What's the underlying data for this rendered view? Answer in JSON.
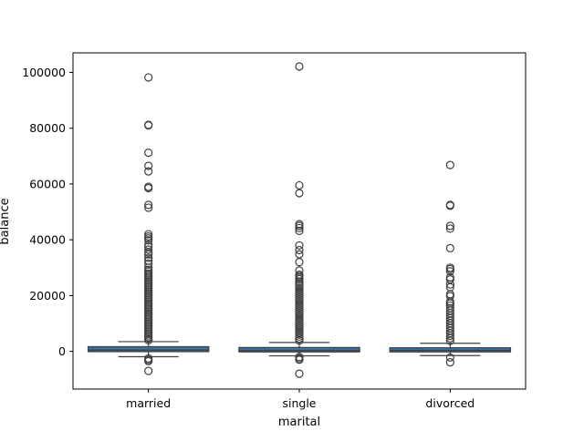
{
  "chart_data": {
    "type": "box",
    "xlabel": "marital",
    "ylabel": "balance",
    "ylim": [
      -13500,
      107000
    ],
    "yticks": [
      0,
      20000,
      40000,
      60000,
      80000,
      100000
    ],
    "ytick_labels": [
      "0",
      "20000",
      "40000",
      "60000",
      "80000",
      "100000"
    ],
    "categories": [
      "married",
      "single",
      "divorced"
    ],
    "box_color": "#3c6e9f",
    "boxes": [
      {
        "category": "married",
        "whisker_low": -1900,
        "q1": -100,
        "median": 450,
        "q3": 1700,
        "whisker_high": 3500,
        "outliers": [
          98200,
          81200,
          81000,
          71200,
          66500,
          64500,
          59000,
          58500,
          52500,
          51500,
          42000,
          41200,
          40500,
          39800,
          38200,
          37500,
          36500,
          35500,
          34800,
          33500,
          32500,
          31500,
          30000,
          29200,
          28600,
          27900,
          27300,
          26700,
          26100,
          25500,
          24900,
          24300,
          23700,
          23100,
          22500,
          21900,
          21300,
          20700,
          20100,
          19500,
          18900,
          18300,
          17700,
          17100,
          16500,
          15900,
          15300,
          14700,
          14100,
          13500,
          12900,
          12300,
          11700,
          11100,
          10500,
          9900,
          9300,
          8700,
          8100,
          7500,
          6900,
          6300,
          5700,
          5100,
          4500,
          4000,
          -2500,
          -3000,
          -3500,
          -7000
        ]
      },
      {
        "category": "single",
        "whisker_low": -1600,
        "q1": -200,
        "median": 300,
        "q3": 1400,
        "whisker_high": 3200,
        "outliers": [
          102100,
          59500,
          56700,
          45600,
          45000,
          44200,
          43200,
          38000,
          36300,
          34800,
          32000,
          29000,
          27500,
          27000,
          26400,
          25900,
          25000,
          24200,
          23500,
          22800,
          22100,
          21400,
          20700,
          20000,
          19300,
          18600,
          17900,
          17200,
          16500,
          15800,
          15100,
          14400,
          13700,
          13000,
          12300,
          11600,
          10900,
          10200,
          9500,
          8800,
          8100,
          7400,
          6700,
          6000,
          5300,
          4600,
          3900,
          -2000,
          -2500,
          -3000,
          -8000
        ]
      },
      {
        "category": "divorced",
        "whisker_low": -1500,
        "q1": -200,
        "median": 350,
        "q3": 1300,
        "whisker_high": 2900,
        "outliers": [
          66800,
          52500,
          52200,
          45000,
          44000,
          37000,
          30000,
          29500,
          28700,
          26500,
          25800,
          24000,
          23000,
          20500,
          19800,
          17800,
          17200,
          16400,
          15500,
          14600,
          13700,
          12800,
          11900,
          11000,
          10100,
          9200,
          8300,
          7400,
          6500,
          5600,
          4700,
          3800,
          -2200,
          -3900
        ]
      }
    ]
  }
}
